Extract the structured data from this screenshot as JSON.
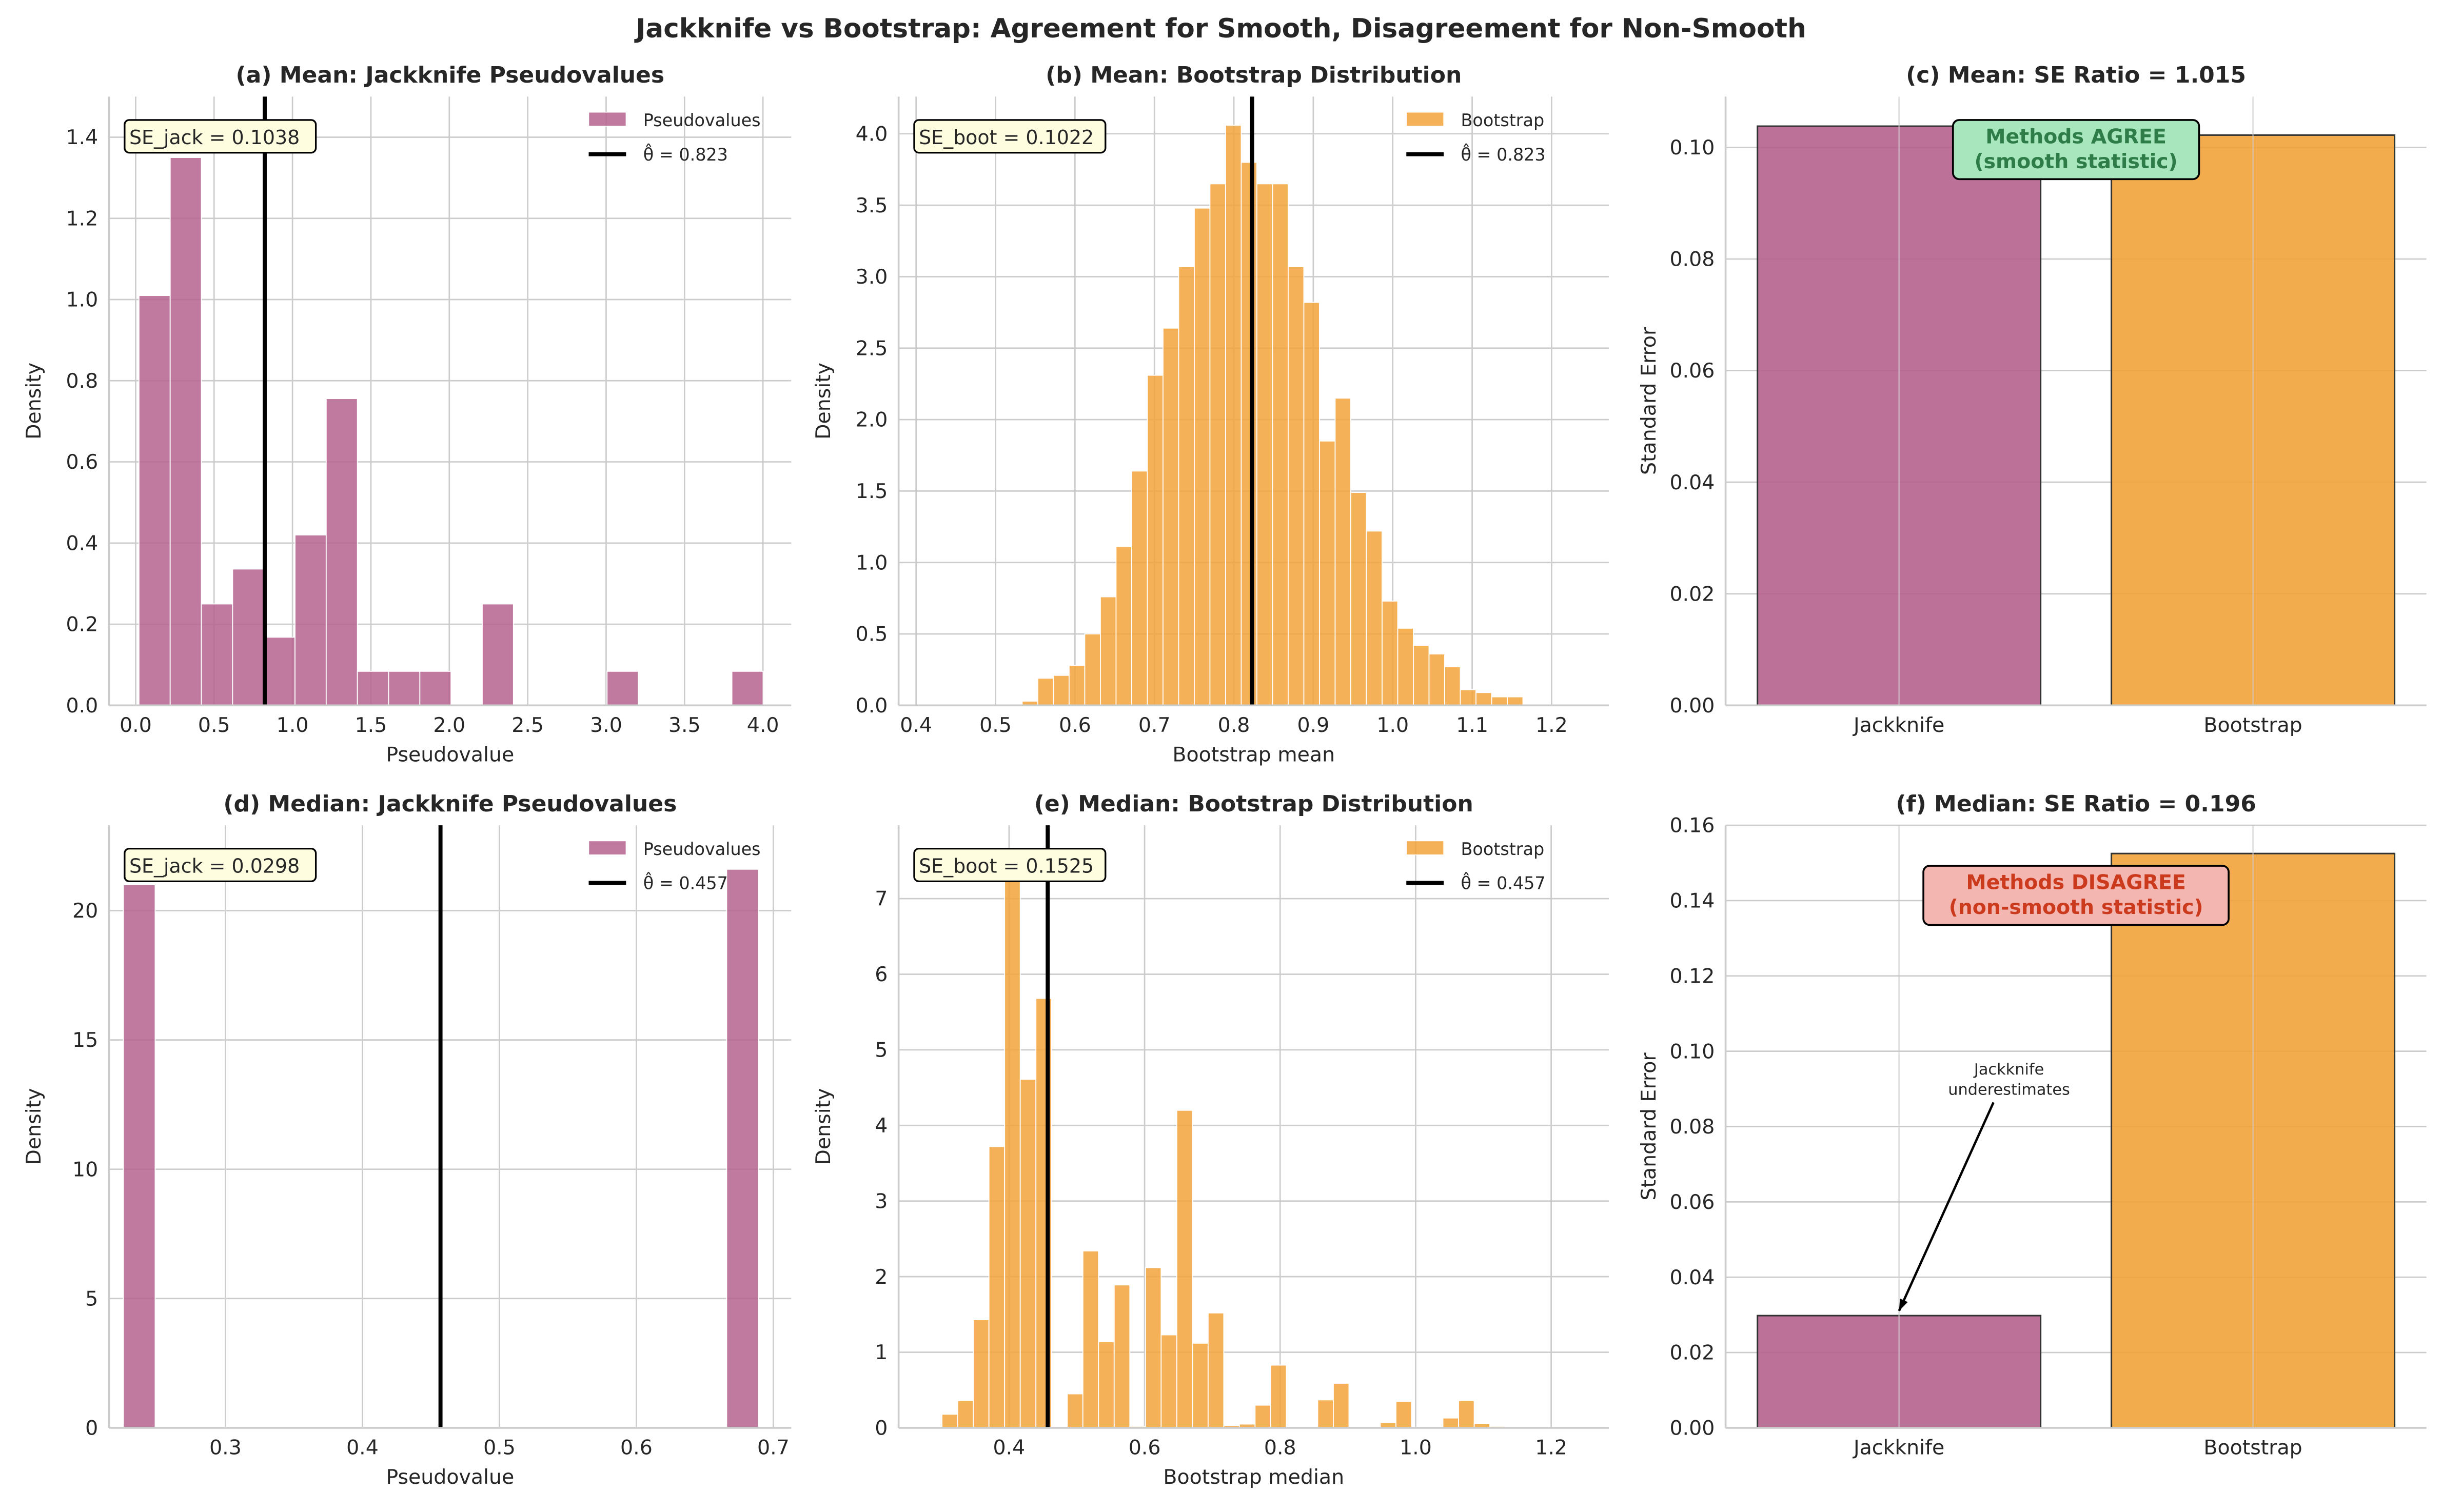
{
  "suptitle": "Jackknife vs Bootstrap: Agreement for Smooth, Disagreement for Non-Smooth",
  "colors": {
    "jackknife": "#b5628e",
    "bootstrap": "#f2a33a",
    "agree_box": "#a8e6bd",
    "agree_text": "#2e7d48",
    "disagree_box": "#f4b6b1",
    "disagree_text": "#cc3a1e",
    "se_box": "#fffde0"
  },
  "chart_data": [
    {
      "type": "bar",
      "subtype": "histogram",
      "title": "(a) Mean: Jackknife Pseudovalues",
      "xlabel": "Pseudovalue",
      "ylabel": "Density",
      "xlim": [
        -0.17,
        4.18
      ],
      "ylim": [
        0,
        1.5
      ],
      "xtick_labels": [
        "0.0",
        "0.5",
        "1.0",
        "1.5",
        "2.0",
        "2.5",
        "3.0",
        "3.5",
        "4.0"
      ],
      "ytick_labels": [
        "0.0",
        "0.2",
        "0.4",
        "0.6",
        "0.8",
        "1.0",
        "1.2",
        "1.4"
      ],
      "bin_start": 0.021,
      "bin_width": 0.199,
      "values": [
        1.01,
        1.35,
        0.25,
        0.336,
        0.168,
        0.42,
        0.756,
        0.084,
        0.084,
        0.084,
        0,
        0.25,
        0,
        0,
        0,
        0.084,
        0,
        0,
        0,
        0.084
      ],
      "color": "jackknife",
      "vline": 0.823,
      "legend": [
        "Pseudovalues",
        "θ̂ = 0.823"
      ],
      "legend_position": "top-right",
      "se_text": "SE_jack = 0.1038",
      "grid": true
    },
    {
      "type": "bar",
      "subtype": "histogram",
      "title": "(b) Mean: Bootstrap Distribution",
      "xlabel": "Bootstrap mean",
      "ylabel": "Density",
      "xlim": [
        0.378,
        1.272
      ],
      "ylim": [
        0,
        4.26
      ],
      "xtick_labels": [
        "0.4",
        "0.5",
        "0.6",
        "0.7",
        "0.8",
        "0.9",
        "1.0",
        "1.1",
        "1.2"
      ],
      "ytick_labels": [
        "0.0",
        "0.5",
        "1.0",
        "1.5",
        "2.0",
        "2.5",
        "3.0",
        "3.5",
        "4.0"
      ],
      "bin_start": 0.435,
      "bin_width": 0.0197,
      "values": [
        0.005,
        0.005,
        0,
        0,
        0.01,
        0.03,
        0.19,
        0.21,
        0.28,
        0.5,
        0.76,
        1.11,
        1.64,
        2.31,
        2.64,
        3.07,
        3.48,
        3.65,
        4.06,
        3.8,
        3.65,
        3.65,
        3.07,
        2.82,
        1.85,
        2.15,
        1.49,
        1.22,
        0.73,
        0.54,
        0.42,
        0.36,
        0.27,
        0.11,
        0.09,
        0.06,
        0.06,
        0,
        0,
        0.005
      ],
      "color": "bootstrap",
      "vline": 0.823,
      "legend": [
        "Bootstrap",
        "θ̂ = 0.823"
      ],
      "legend_position": "top-right",
      "se_text": "SE_boot = 0.1022",
      "grid": true
    },
    {
      "type": "bar",
      "title": "(c) Mean: SE Ratio = 1.015",
      "xlabel": "",
      "ylabel": "Standard Error",
      "xlim": [
        -0.49,
        1.49
      ],
      "ylim": [
        0,
        0.1091
      ],
      "categories": [
        "Jackknife",
        "Bootstrap"
      ],
      "values": [
        0.1038,
        0.1022
      ],
      "ytick_labels": [
        "0.00",
        "0.02",
        "0.04",
        "0.06",
        "0.08",
        "0.10"
      ],
      "colors": [
        "jackknife",
        "bootstrap"
      ],
      "annotation": {
        "lines": [
          "Methods AGREE",
          "(smooth statistic)"
        ],
        "style": "agree"
      },
      "grid": true
    },
    {
      "type": "bar",
      "subtype": "histogram",
      "title": "(d) Median: Jackknife Pseudovalues",
      "xlabel": "Pseudovalue",
      "ylabel": "Density",
      "xlim": [
        0.215,
        0.713
      ],
      "ylim": [
        0,
        23.3
      ],
      "xtick_labels": [
        "0.3",
        "0.4",
        "0.5",
        "0.6",
        "0.7"
      ],
      "ytick_labels": [
        "0",
        "5",
        "10",
        "15",
        "20"
      ],
      "bin_start": 0.2255,
      "bin_width": 0.02318,
      "values": [
        21.0,
        0,
        0,
        0,
        0,
        0,
        0,
        0,
        0,
        0,
        0,
        0,
        0,
        0,
        0,
        0,
        0,
        0,
        0,
        21.6
      ],
      "color": "jackknife",
      "vline": 0.457,
      "legend": [
        "Pseudovalues",
        "θ̂ = 0.457"
      ],
      "legend_position": "top-right",
      "se_text": "SE_jack = 0.0298",
      "grid": true
    },
    {
      "type": "bar",
      "subtype": "histogram",
      "title": "(e) Median: Bootstrap Distribution",
      "xlabel": "Bootstrap median",
      "ylabel": "Density",
      "xlim": [
        0.237,
        1.285
      ],
      "ylim": [
        0,
        7.97
      ],
      "xtick_labels": [
        "0.4",
        "0.6",
        "0.8",
        "1.0",
        "1.2"
      ],
      "ytick_labels": [
        "0",
        "1",
        "2",
        "3",
        "4",
        "5",
        "6",
        "7"
      ],
      "bin_start": 0.301,
      "bin_width": 0.0231,
      "values": [
        0.18,
        0.36,
        1.43,
        3.72,
        7.25,
        4.61,
        5.68,
        0.01,
        0.45,
        2.34,
        1.14,
        1.89,
        0.02,
        2.12,
        1.23,
        4.2,
        1.12,
        1.52,
        0.03,
        0.05,
        0.3,
        0.83,
        0,
        0,
        0.37,
        0.59,
        0,
        0,
        0.07,
        0.35,
        0,
        0,
        0.13,
        0.36,
        0.06,
        0.02
      ],
      "color": "bootstrap",
      "vline": 0.457,
      "legend": [
        "Bootstrap",
        "θ̂ = 0.457"
      ],
      "legend_position": "top-right",
      "se_text": "SE_boot = 0.1525",
      "grid": true
    },
    {
      "type": "bar",
      "title": "(f) Median: SE Ratio = 0.196",
      "xlabel": "",
      "ylabel": "Standard Error",
      "xlim": [
        -0.49,
        1.49
      ],
      "ylim": [
        0,
        0.16
      ],
      "categories": [
        "Jackknife",
        "Bootstrap"
      ],
      "values": [
        0.0298,
        0.1525
      ],
      "ytick_labels": [
        "0.00",
        "0.02",
        "0.04",
        "0.06",
        "0.08",
        "0.10",
        "0.12",
        "0.14",
        "0.16"
      ],
      "colors": [
        "jackknife",
        "bootstrap"
      ],
      "annotation": {
        "lines": [
          "Methods DISAGREE",
          "(non-smooth statistic)"
        ],
        "style": "disagree"
      },
      "arrow_note": [
        "Jackknife",
        "underestimates"
      ],
      "grid": true
    }
  ]
}
